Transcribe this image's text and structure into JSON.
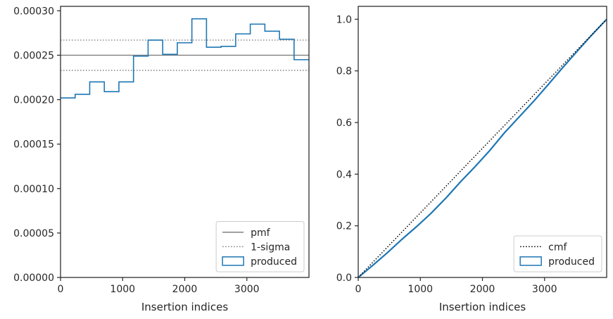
{
  "chart_data": [
    {
      "type": "histogram-step",
      "xlabel": "Insertion indices",
      "ylabel": "",
      "xlim": [
        0,
        4000
      ],
      "ylim": [
        0,
        0.000305
      ],
      "xticks": [
        0,
        1000,
        2000,
        3000
      ],
      "xtick_labels": [
        "0",
        "1000",
        "2000",
        "3000"
      ],
      "yticks": [
        0,
        5e-05,
        0.0001,
        0.00015,
        0.0002,
        0.00025,
        0.0003
      ],
      "ytick_labels": [
        "0.00000",
        "0.00005",
        "0.00010",
        "0.00015",
        "0.00020",
        "0.00025",
        "0.00030"
      ],
      "bin_edges": [
        0,
        235,
        470,
        705,
        940,
        1175,
        1410,
        1645,
        1880,
        2115,
        2350,
        2585,
        2820,
        3055,
        3290,
        3525,
        3760,
        4000
      ],
      "series": [
        {
          "name": "produced",
          "color": "#1f77b4",
          "values": [
            0.000202,
            0.000206,
            0.00022,
            0.000209,
            0.00022,
            0.000249,
            0.000267,
            0.000251,
            0.000264,
            0.000291,
            0.000259,
            0.00026,
            0.000274,
            0.000285,
            0.000277,
            0.000268,
            0.000245
          ]
        }
      ],
      "reference_lines": [
        {
          "name": "pmf",
          "value": 0.00025,
          "style": "solid",
          "color": "#808080"
        },
        {
          "name": "1-sigma",
          "values": [
            0.000233,
            0.000267
          ],
          "style": "dotted",
          "color": "#808080"
        }
      ],
      "legend": {
        "placement": "lower-right",
        "entries": [
          {
            "label": "pmf",
            "kind": "solid-line",
            "color": "#808080"
          },
          {
            "label": "1-sigma",
            "kind": "dotted-line",
            "color": "#808080"
          },
          {
            "label": "produced",
            "kind": "patch",
            "color": "#1f77b4"
          }
        ]
      }
    },
    {
      "type": "line",
      "xlabel": "Insertion indices",
      "ylabel": "",
      "xlim": [
        0,
        4000
      ],
      "ylim": [
        0,
        1.05
      ],
      "xticks": [
        0,
        1000,
        2000,
        3000
      ],
      "xtick_labels": [
        "0",
        "1000",
        "2000",
        "3000"
      ],
      "yticks": [
        0,
        0.2,
        0.4,
        0.6,
        0.8,
        1.0
      ],
      "ytick_labels": [
        "0.0",
        "0.2",
        "0.4",
        "0.6",
        "0.8",
        "1.0"
      ],
      "series": [
        {
          "name": "cmf",
          "style": "dotted",
          "color": "#000000",
          "x": [
            0,
            4000
          ],
          "y": [
            0,
            1
          ]
        },
        {
          "name": "produced",
          "style": "solid",
          "color": "#1f77b4",
          "x": [
            0,
            235,
            470,
            705,
            940,
            1175,
            1410,
            1645,
            1880,
            2115,
            2350,
            2585,
            2820,
            3055,
            3290,
            3525,
            3760,
            4000
          ],
          "y": [
            0,
            0.047,
            0.096,
            0.148,
            0.197,
            0.249,
            0.307,
            0.37,
            0.429,
            0.491,
            0.559,
            0.62,
            0.681,
            0.746,
            0.812,
            0.876,
            0.939,
            1.0
          ]
        }
      ],
      "legend": {
        "placement": "lower-right",
        "entries": [
          {
            "label": "cmf",
            "kind": "dotted-line",
            "color": "#000000"
          },
          {
            "label": "produced",
            "kind": "patch",
            "color": "#1f77b4"
          }
        ]
      }
    }
  ]
}
